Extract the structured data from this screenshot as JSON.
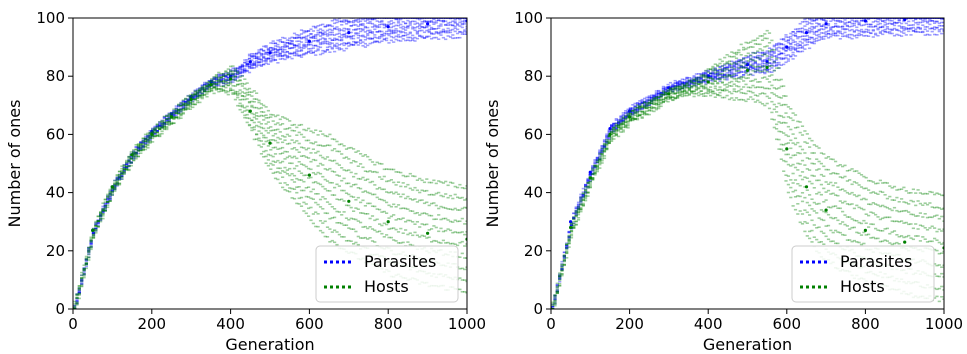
{
  "chart_data": [
    {
      "type": "scatter",
      "title": "",
      "xlabel": "Generation",
      "ylabel": "Number of ones",
      "xlim": [
        0,
        1000
      ],
      "ylim": [
        0,
        100
      ],
      "xticks": [
        "0",
        "200",
        "400",
        "600",
        "800",
        "1000"
      ],
      "yticks": [
        "0",
        "20",
        "40",
        "60",
        "80",
        "100"
      ],
      "grid": false,
      "legend_position": "lower-right",
      "series": [
        {
          "name": "Parasites",
          "color": "#0000ff",
          "x": [
            0,
            50,
            100,
            150,
            200,
            250,
            300,
            350,
            400,
            450,
            500,
            600,
            700,
            800,
            900,
            1000
          ],
          "y": [
            0,
            27,
            42,
            53,
            61,
            67,
            73,
            78,
            80,
            85,
            88,
            92,
            95,
            97,
            98,
            99
          ]
        },
        {
          "name": "Hosts",
          "color": "#008000",
          "x": [
            0,
            50,
            100,
            150,
            200,
            250,
            300,
            350,
            400,
            450,
            500,
            600,
            700,
            800,
            900,
            1000
          ],
          "y": [
            0,
            27,
            42,
            53,
            60,
            66,
            72,
            77,
            79,
            68,
            57,
            46,
            37,
            30,
            26,
            24
          ]
        }
      ]
    },
    {
      "type": "scatter",
      "title": "",
      "xlabel": "Generation",
      "ylabel": "Number of ones",
      "xlim": [
        0,
        1000
      ],
      "ylim": [
        0,
        100
      ],
      "xticks": [
        "0",
        "200",
        "400",
        "600",
        "800",
        "1000"
      ],
      "yticks": [
        "0",
        "20",
        "40",
        "60",
        "80",
        "100"
      ],
      "grid": false,
      "legend_position": "lower-right",
      "series": [
        {
          "name": "Parasites",
          "color": "#0000ff",
          "x": [
            0,
            50,
            100,
            150,
            200,
            300,
            400,
            500,
            550,
            600,
            650,
            700,
            800,
            900,
            1000
          ],
          "y": [
            0,
            30,
            47,
            62,
            68,
            76,
            80,
            84,
            85,
            90,
            95,
            98,
            99,
            99.5,
            100
          ]
        },
        {
          "name": "Hosts",
          "color": "#008000",
          "x": [
            0,
            50,
            100,
            150,
            200,
            300,
            400,
            500,
            550,
            600,
            650,
            700,
            800,
            900,
            1000
          ],
          "y": [
            0,
            28,
            45,
            60,
            66,
            74,
            78,
            82,
            83,
            55,
            42,
            34,
            27,
            23,
            21
          ]
        }
      ]
    }
  ]
}
